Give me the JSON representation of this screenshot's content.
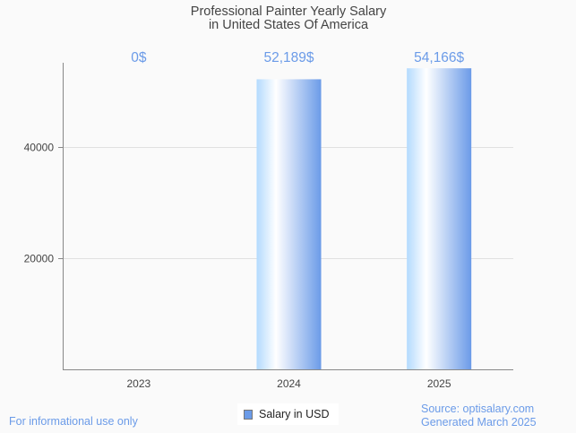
{
  "chart_data": {
    "type": "bar",
    "title": "Professional Painter Yearly Salary",
    "subtitle": "in United States Of America",
    "categories": [
      "2023",
      "2024",
      "2025"
    ],
    "series": [
      {
        "name": "Salary in USD",
        "values": [
          0,
          52189,
          54166
        ],
        "labels": [
          "0$",
          "52,189$",
          "54,166$"
        ]
      }
    ],
    "yticks": [
      20000,
      40000
    ],
    "ytick_labels": [
      "20000",
      "40000"
    ],
    "ylim": [
      0,
      55160
    ],
    "xlabel": "",
    "ylabel": "",
    "grid": true,
    "legend": "bottom-center",
    "colors": {
      "bar_light": "#b3dafe",
      "bar_mid": "#ffffff",
      "bar_dark": "#6b9be8",
      "label": "#6b9be8",
      "axis": "#888888",
      "grid": "#e0e0e0"
    }
  },
  "footer": {
    "left": "For informational use only",
    "source": "Source: optisalary.com",
    "generated": "Generated March 2025"
  }
}
